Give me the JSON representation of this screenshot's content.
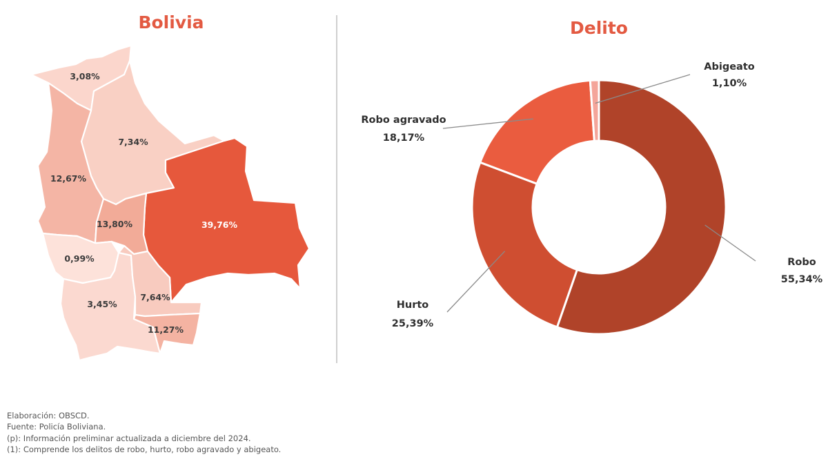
{
  "map": {
    "title": "Bolivia",
    "regions": [
      {
        "id": "pando",
        "label": "3,08%",
        "value": 3.08,
        "color": "#fbd6cc"
      },
      {
        "id": "beni",
        "label": "7,34%",
        "value": 7.34,
        "color": "#f9d0c4"
      },
      {
        "id": "la-paz",
        "label": "12,67%",
        "value": 12.67,
        "color": "#f4b5a5"
      },
      {
        "id": "santa-cruz",
        "label": "39,76%",
        "value": 39.76,
        "color": "#e6583c"
      },
      {
        "id": "cochabamba",
        "label": "13,80%",
        "value": 13.8,
        "color": "#f2ab98"
      },
      {
        "id": "oruro",
        "label": "0,99%",
        "value": 0.99,
        "color": "#fde2da"
      },
      {
        "id": "potosi",
        "label": "3,45%",
        "value": 3.45,
        "color": "#fbd9d0"
      },
      {
        "id": "chuquisaca",
        "label": "7,64%",
        "value": 7.64,
        "color": "#f8cbbf"
      },
      {
        "id": "tarija",
        "label": "11,27%",
        "value": 11.27,
        "color": "#f4b3a2"
      }
    ]
  },
  "chart_data": {
    "type": "pie",
    "title": "Delito",
    "categories": [
      "Robo",
      "Hurto",
      "Robo agravado",
      "Abigeato"
    ],
    "values": [
      55.34,
      25.39,
      18.17,
      1.1
    ],
    "labels": [
      "55,34%",
      "25,39%",
      "18,17%",
      "1,10%"
    ],
    "colors": [
      "#b04329",
      "#cf4e31",
      "#ea5c3f",
      "#f4a59a"
    ],
    "hole": true
  },
  "notes": [
    "Elaboración: OBSCD.",
    "Fuente: Policía Boliviana.",
    "(p): Información preliminar actualizada a diciembre del 2024.",
    "(1): Comprende los delitos de robo, hurto, robo agravado y abigeato."
  ]
}
